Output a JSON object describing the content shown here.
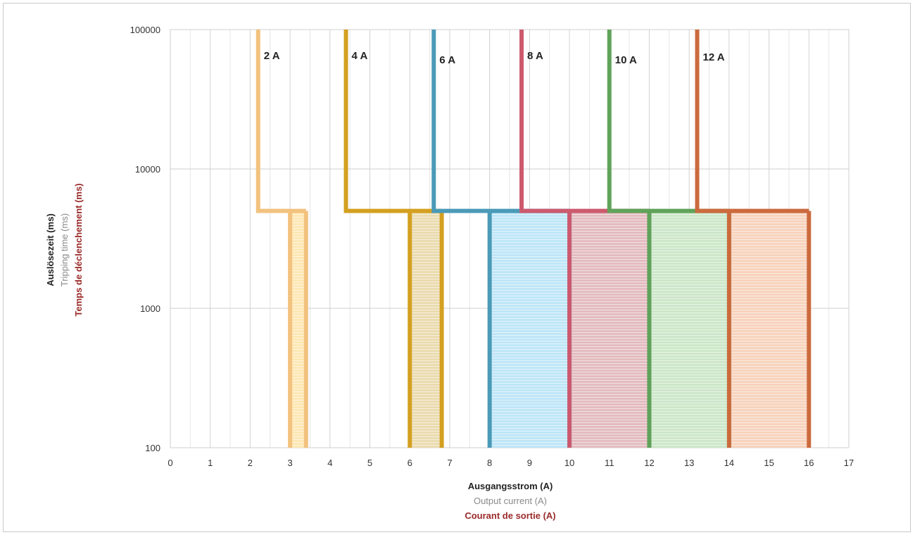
{
  "chart_data": {
    "type": "line",
    "xlabel": [
      "Ausgangsstrom (A)",
      "Output current (A)",
      "Courant de sortie (A)"
    ],
    "ylabel": [
      "Auslösezeit (ms)",
      "Tripping time (ms)",
      "Temps de déclenchement (ms)"
    ],
    "xlim": [
      0,
      17
    ],
    "ylim": [
      100,
      100000
    ],
    "yscale": "log",
    "grid": true,
    "xticks": [
      "0",
      "1",
      "2",
      "3",
      "4",
      "5",
      "6",
      "7",
      "8",
      "9",
      "10",
      "11",
      "12",
      "13",
      "14",
      "15",
      "16",
      "17"
    ],
    "yticks": [
      "100",
      "1000",
      "10000",
      "100000"
    ],
    "series": [
      {
        "name": "2 A",
        "color": "#f2c27e",
        "fill": "#fde7b3",
        "upper_x": 2.2,
        "step_y": 5000,
        "band": [
          3.0,
          3.4
        ]
      },
      {
        "name": "4 A",
        "color": "#d4a020",
        "fill": "#eadbb0",
        "upper_x": 4.4,
        "step_y": 5000,
        "band": [
          6.0,
          6.8
        ]
      },
      {
        "name": "6 A",
        "color": "#4a9ab8",
        "fill": "#bfe6f7",
        "upper_x": 6.6,
        "step_y": 5000,
        "band": [
          8.0,
          10.0
        ]
      },
      {
        "name": "8 A",
        "color": "#cc5a6e",
        "fill": "#e3bcc0",
        "upper_x": 8.8,
        "step_y": 5000,
        "band": [
          10.0,
          12.0
        ]
      },
      {
        "name": "10 A",
        "color": "#5fa35a",
        "fill": "#cde7c9",
        "upper_x": 11.0,
        "step_y": 5000,
        "band": [
          12.0,
          14.0
        ]
      },
      {
        "name": "12 A",
        "color": "#cc6a3e",
        "fill": "#f7d3bd",
        "upper_x": 13.2,
        "step_y": 5000,
        "band": [
          14.0,
          16.0
        ]
      }
    ]
  }
}
